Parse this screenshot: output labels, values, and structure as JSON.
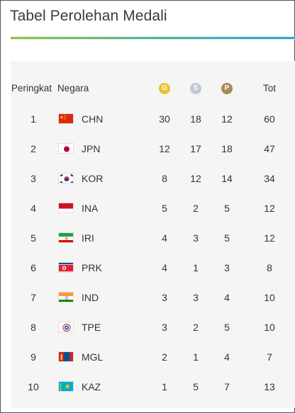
{
  "title": "Tabel Perolehan Medali",
  "header": {
    "rank": "Peringkat",
    "country": "Negara",
    "gold": "G",
    "silver": "S",
    "bronze": "P",
    "total": "Tot"
  },
  "colors": {
    "gold": "#e9c234",
    "silver": "#c2c8d3",
    "bronze": "#a88a55",
    "accent_start": "#8dc63f",
    "accent_end": "#29a9d6",
    "table_bg": "#f5f5f5"
  },
  "rows": [
    {
      "rank": "1",
      "code": "CHN",
      "flag": "china-flag-icon",
      "gold": "30",
      "silver": "18",
      "bronze": "12",
      "total": "60"
    },
    {
      "rank": "2",
      "code": "JPN",
      "flag": "japan-flag-icon",
      "gold": "12",
      "silver": "17",
      "bronze": "18",
      "total": "47"
    },
    {
      "rank": "3",
      "code": "KOR",
      "flag": "south-korea-flag-icon",
      "gold": "8",
      "silver": "12",
      "bronze": "14",
      "total": "34"
    },
    {
      "rank": "4",
      "code": "INA",
      "flag": "indonesia-flag-icon",
      "gold": "5",
      "silver": "2",
      "bronze": "5",
      "total": "12"
    },
    {
      "rank": "5",
      "code": "IRI",
      "flag": "iran-flag-icon",
      "gold": "4",
      "silver": "3",
      "bronze": "5",
      "total": "12"
    },
    {
      "rank": "6",
      "code": "PRK",
      "flag": "north-korea-flag-icon",
      "gold": "4",
      "silver": "1",
      "bronze": "3",
      "total": "8"
    },
    {
      "rank": "7",
      "code": "IND",
      "flag": "india-flag-icon",
      "gold": "3",
      "silver": "3",
      "bronze": "4",
      "total": "10"
    },
    {
      "rank": "8",
      "code": "TPE",
      "flag": "chinese-taipei-flag-icon",
      "gold": "3",
      "silver": "2",
      "bronze": "5",
      "total": "10"
    },
    {
      "rank": "9",
      "code": "MGL",
      "flag": "mongolia-flag-icon",
      "gold": "2",
      "silver": "1",
      "bronze": "4",
      "total": "7"
    },
    {
      "rank": "10",
      "code": "KAZ",
      "flag": "kazakhstan-flag-icon",
      "gold": "1",
      "silver": "5",
      "bronze": "7",
      "total": "13"
    }
  ]
}
